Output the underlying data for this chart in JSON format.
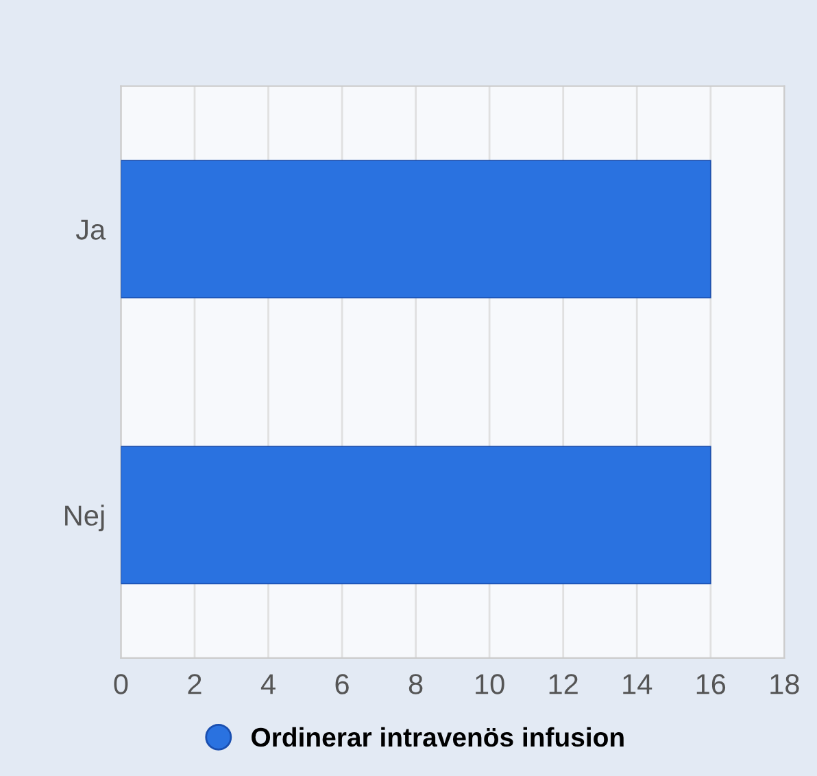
{
  "chart_data": {
    "type": "bar",
    "orientation": "horizontal",
    "categories": [
      "Ja",
      "Nej"
    ],
    "series": [
      {
        "name": "Ordinerar intravenös infusion",
        "color": "#2a72e0",
        "values": [
          16,
          16
        ]
      }
    ],
    "xlim": [
      0,
      18
    ],
    "xticks": [
      0,
      2,
      4,
      6,
      8,
      10,
      12,
      14,
      16,
      18
    ],
    "grid": "x",
    "legend": "bottom"
  }
}
